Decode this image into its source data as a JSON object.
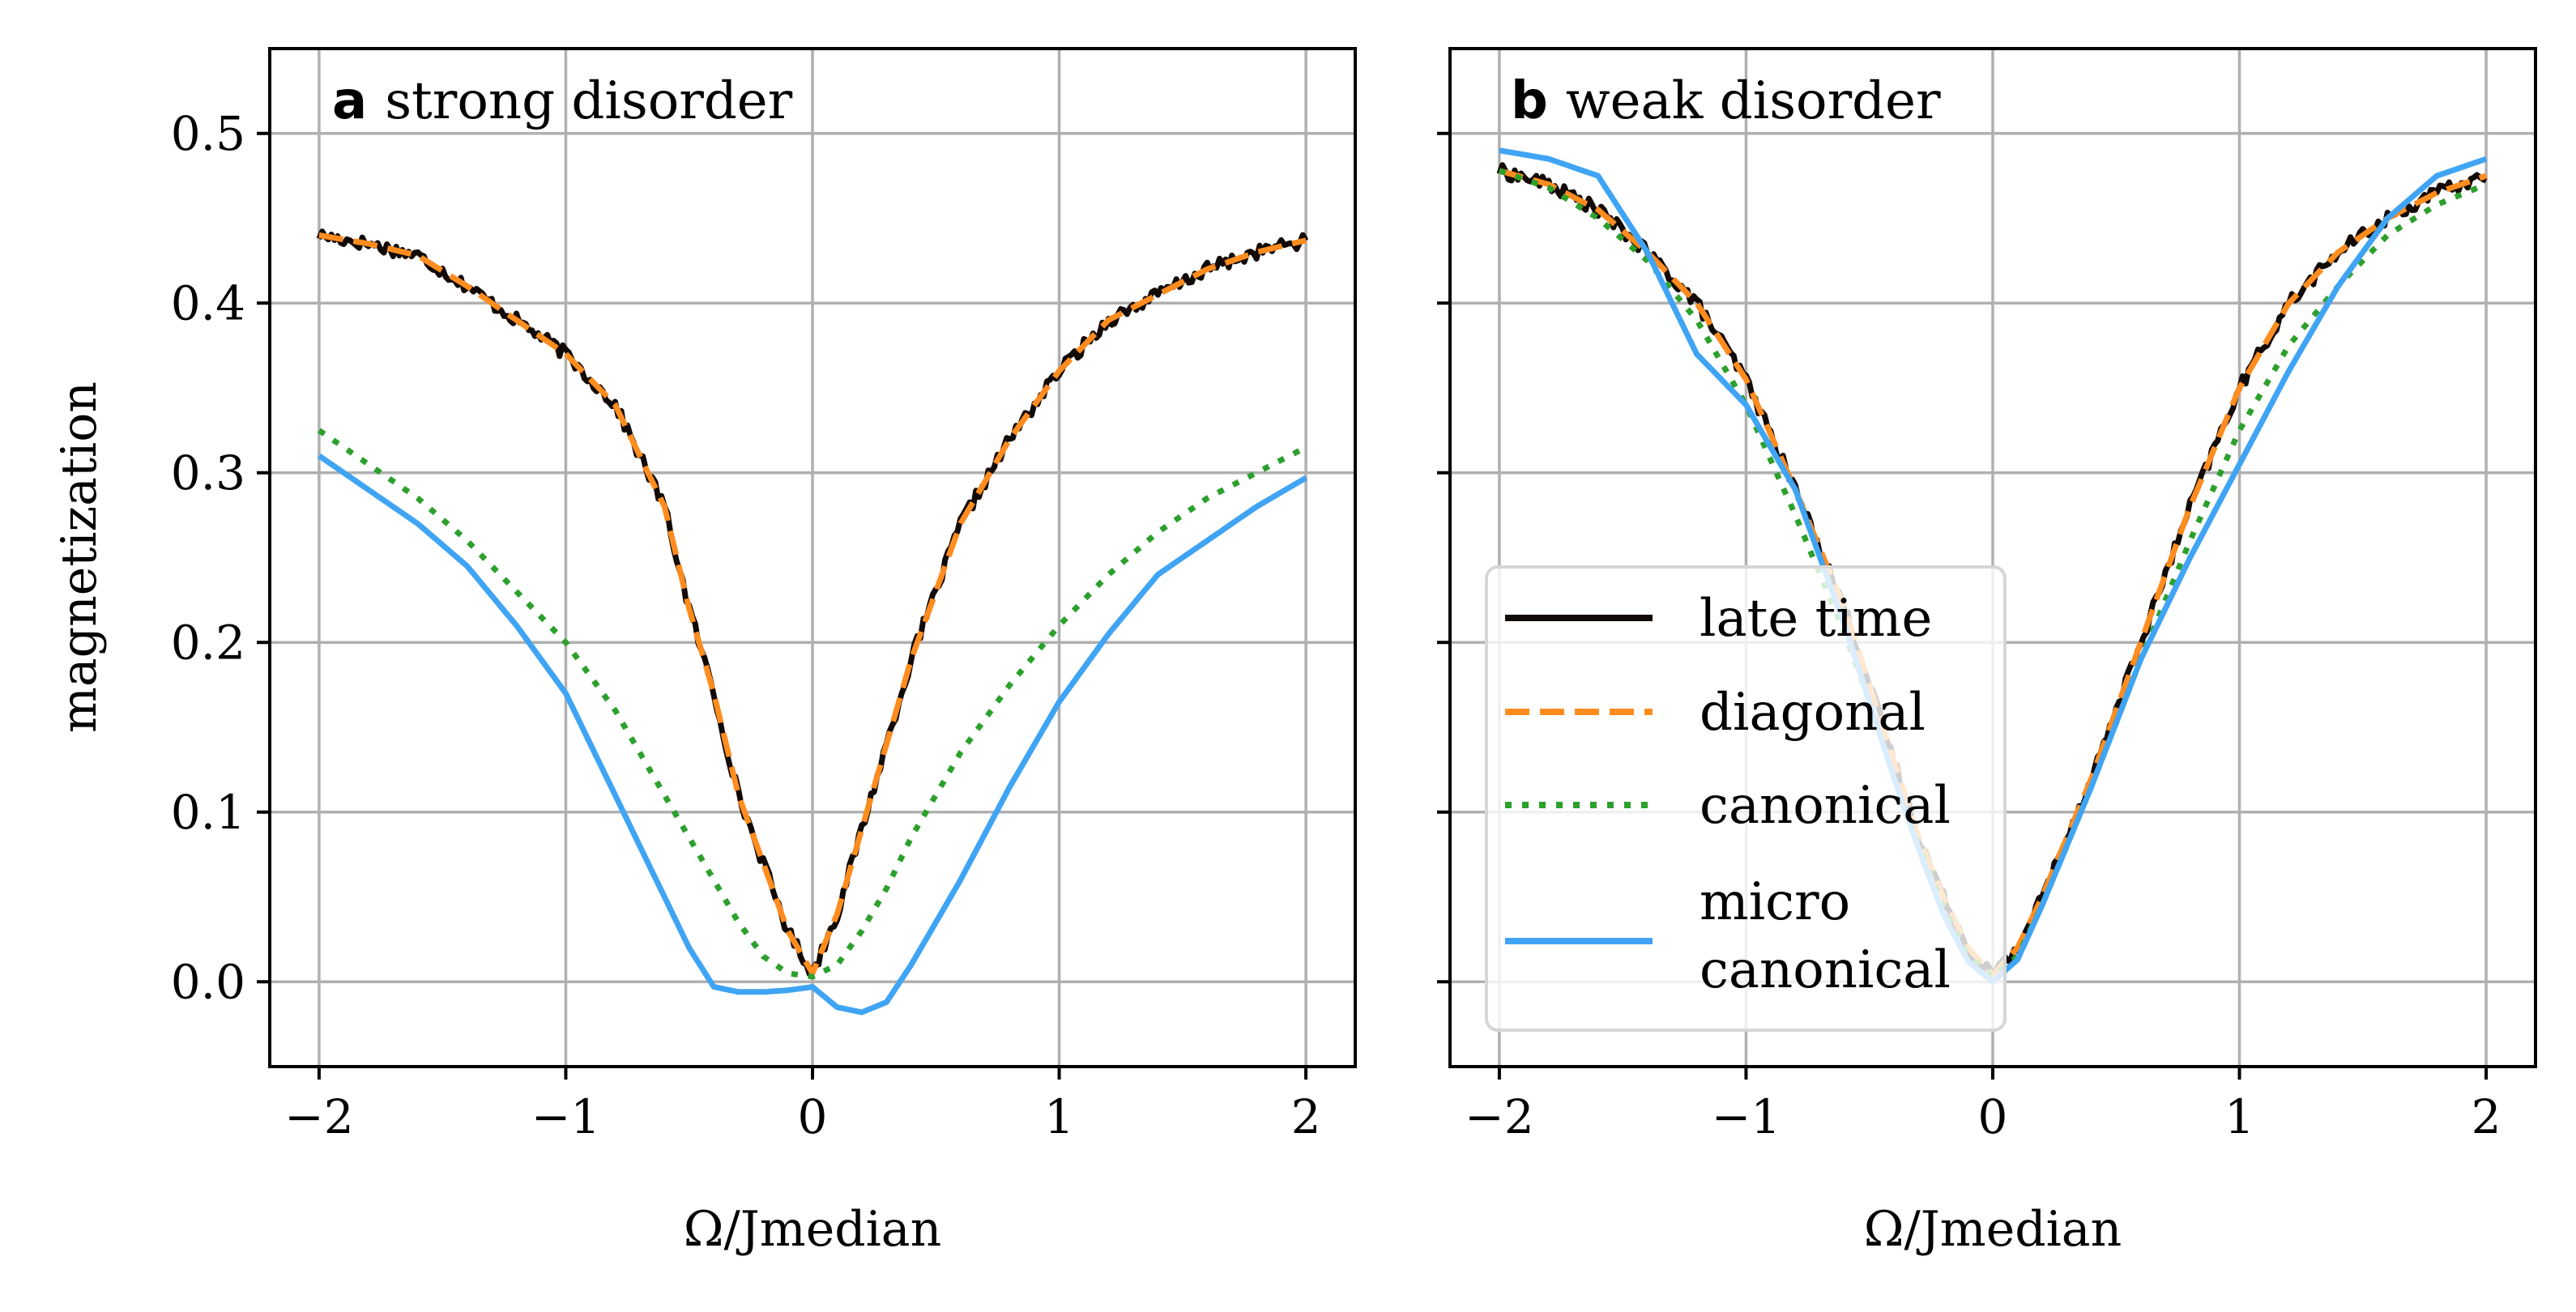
{
  "figure": {
    "ylabel": "magnetization",
    "x_tick_labels": [
      "−2",
      "−1",
      "0",
      "1",
      "2"
    ],
    "y_tick_labels": [
      "0.0",
      "0.1",
      "0.2",
      "0.3",
      "0.4",
      "0.5"
    ]
  },
  "colors": {
    "late_time": "#120a06",
    "diagonal": "#ff8c1e",
    "canonical": "#2ca02c",
    "microcanonical": "#40a4f4",
    "grid": "#b0b0b0",
    "legend_border": "#d6d6d6"
  },
  "legend": {
    "items": [
      {
        "key": "late_time",
        "label": "late time"
      },
      {
        "key": "diagonal",
        "label": "diagonal"
      },
      {
        "key": "canonical",
        "label": "canonical"
      },
      {
        "key": "microcanonical",
        "label_lines": [
          "micro",
          "canonical"
        ]
      }
    ]
  },
  "chart_data": [
    {
      "type": "line",
      "panel_letter": "a",
      "title": "strong disorder",
      "xlabel": "Ω/Jmedian",
      "ylabel": "magnetization",
      "xlim": [
        -2.2,
        2.2
      ],
      "ylim": [
        -0.05,
        0.55
      ],
      "xticks": [
        -2,
        -1,
        0,
        1,
        2
      ],
      "yticks": [
        0.0,
        0.1,
        0.2,
        0.3,
        0.4,
        0.5
      ],
      "grid": true,
      "x": [
        -2.0,
        -1.8,
        -1.6,
        -1.4,
        -1.2,
        -1.0,
        -0.8,
        -0.6,
        -0.5,
        -0.4,
        -0.3,
        -0.2,
        -0.1,
        0.0,
        0.1,
        0.2,
        0.3,
        0.4,
        0.5,
        0.6,
        0.8,
        1.0,
        1.2,
        1.4,
        1.6,
        1.8,
        2.0
      ],
      "series": [
        {
          "name": "late time",
          "key": "late_time",
          "style": "solid",
          "noisy": true,
          "values": [
            0.44,
            0.435,
            0.428,
            0.41,
            0.39,
            0.37,
            0.34,
            0.28,
            0.22,
            0.17,
            0.11,
            0.07,
            0.03,
            0.005,
            0.04,
            0.09,
            0.14,
            0.19,
            0.23,
            0.27,
            0.32,
            0.36,
            0.39,
            0.405,
            0.42,
            0.43,
            0.437
          ]
        },
        {
          "name": "diagonal",
          "key": "diagonal",
          "style": "dashed",
          "values": [
            0.44,
            0.435,
            0.428,
            0.41,
            0.39,
            0.37,
            0.34,
            0.28,
            0.22,
            0.17,
            0.11,
            0.07,
            0.03,
            0.005,
            0.04,
            0.09,
            0.14,
            0.19,
            0.23,
            0.27,
            0.32,
            0.36,
            0.39,
            0.405,
            0.42,
            0.43,
            0.437
          ]
        },
        {
          "name": "canonical",
          "key": "canonical",
          "style": "dotted",
          "values": [
            0.325,
            0.305,
            0.285,
            0.26,
            0.23,
            0.2,
            0.16,
            0.11,
            0.085,
            0.06,
            0.035,
            0.015,
            0.005,
            0.003,
            0.01,
            0.03,
            0.055,
            0.085,
            0.11,
            0.135,
            0.175,
            0.21,
            0.24,
            0.265,
            0.285,
            0.3,
            0.315
          ]
        },
        {
          "name": "microcanonical",
          "key": "microcanonical",
          "style": "solid",
          "values": [
            0.31,
            0.29,
            0.27,
            0.245,
            0.21,
            0.17,
            0.11,
            0.05,
            0.02,
            -0.003,
            -0.006,
            -0.006,
            -0.005,
            -0.003,
            -0.015,
            -0.018,
            -0.012,
            0.01,
            0.035,
            0.06,
            0.115,
            0.165,
            0.205,
            0.24,
            0.26,
            0.28,
            0.297
          ]
        }
      ]
    },
    {
      "type": "line",
      "panel_letter": "b",
      "title": "weak disorder",
      "xlabel": "Ω/Jmedian",
      "xlim": [
        -2.2,
        2.2
      ],
      "ylim": [
        -0.05,
        0.55
      ],
      "xticks": [
        -2,
        -1,
        0,
        1,
        2
      ],
      "yticks": [
        0.0,
        0.1,
        0.2,
        0.3,
        0.4,
        0.5
      ],
      "grid": true,
      "legend": "lower-left",
      "x": [
        -2.0,
        -1.8,
        -1.6,
        -1.4,
        -1.2,
        -1.0,
        -0.8,
        -0.6,
        -0.5,
        -0.4,
        -0.3,
        -0.2,
        -0.1,
        0.0,
        0.1,
        0.2,
        0.4,
        0.6,
        0.8,
        1.0,
        1.2,
        1.4,
        1.6,
        1.8,
        2.0
      ],
      "series": [
        {
          "name": "late time",
          "key": "late_time",
          "style": "solid",
          "noisy": true,
          "values": [
            0.478,
            0.47,
            0.455,
            0.43,
            0.4,
            0.355,
            0.29,
            0.22,
            0.175,
            0.13,
            0.085,
            0.05,
            0.02,
            0.004,
            0.02,
            0.05,
            0.12,
            0.2,
            0.28,
            0.35,
            0.4,
            0.43,
            0.45,
            0.465,
            0.475
          ]
        },
        {
          "name": "diagonal",
          "key": "diagonal",
          "style": "dashed",
          "values": [
            0.478,
            0.47,
            0.455,
            0.43,
            0.4,
            0.355,
            0.29,
            0.22,
            0.175,
            0.13,
            0.085,
            0.05,
            0.02,
            0.004,
            0.02,
            0.05,
            0.12,
            0.2,
            0.28,
            0.35,
            0.4,
            0.43,
            0.45,
            0.465,
            0.475
          ]
        },
        {
          "name": "canonical",
          "key": "canonical",
          "style": "dotted",
          "values": [
            0.478,
            0.468,
            0.45,
            0.425,
            0.39,
            0.34,
            0.275,
            0.205,
            0.165,
            0.12,
            0.08,
            0.045,
            0.015,
            0.003,
            0.015,
            0.045,
            0.115,
            0.19,
            0.26,
            0.325,
            0.375,
            0.41,
            0.44,
            0.458,
            0.47
          ]
        },
        {
          "name": "micro canonical",
          "key": "microcanonical",
          "style": "solid",
          "values": [
            0.49,
            0.485,
            0.475,
            0.43,
            0.37,
            0.34,
            0.29,
            0.21,
            0.165,
            0.12,
            0.078,
            0.04,
            0.012,
            0.0,
            0.013,
            0.045,
            0.115,
            0.19,
            0.25,
            0.305,
            0.36,
            0.41,
            0.45,
            0.475,
            0.485
          ]
        }
      ]
    }
  ]
}
